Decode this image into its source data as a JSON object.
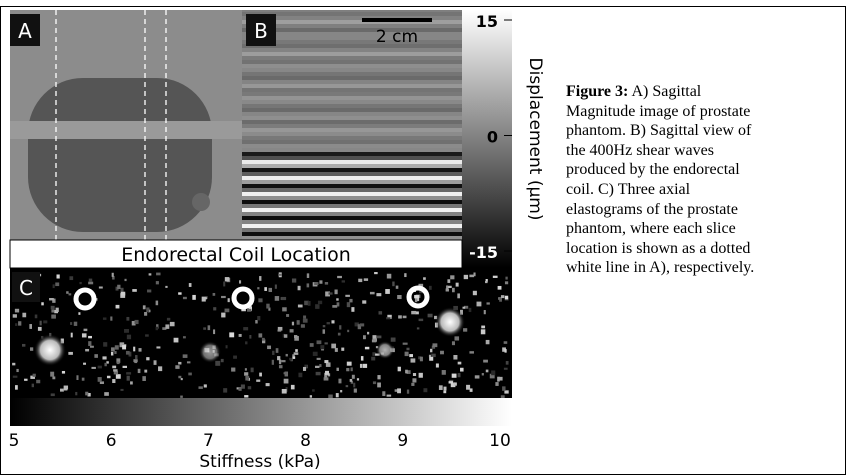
{
  "panels": {
    "a": {
      "label": "A"
    },
    "b": {
      "label": "B",
      "scale_bar": "2 cm"
    },
    "c": {
      "label": "C"
    }
  },
  "banner": "Endorectal Coil Location",
  "displacement_bar": {
    "title": "Displacement (μm)",
    "ticks": [
      15,
      0,
      -15
    ]
  },
  "stiffness_bar": {
    "title": "Stiffness (kPa)",
    "ticks": [
      5,
      6,
      7,
      8,
      9,
      10
    ]
  },
  "caption": {
    "label": "Figure 3:",
    "lines": [
      "A) Sagittal",
      "Magnitude image of prostate",
      "phantom. B) Sagittal view of",
      "the 400Hz shear waves",
      "produced by the endorectal",
      "coil. C) Three axial",
      "elastograms of the prostate",
      "phantom, where each slice",
      "location is shown as a dotted",
      "white line in A), respectively."
    ]
  }
}
